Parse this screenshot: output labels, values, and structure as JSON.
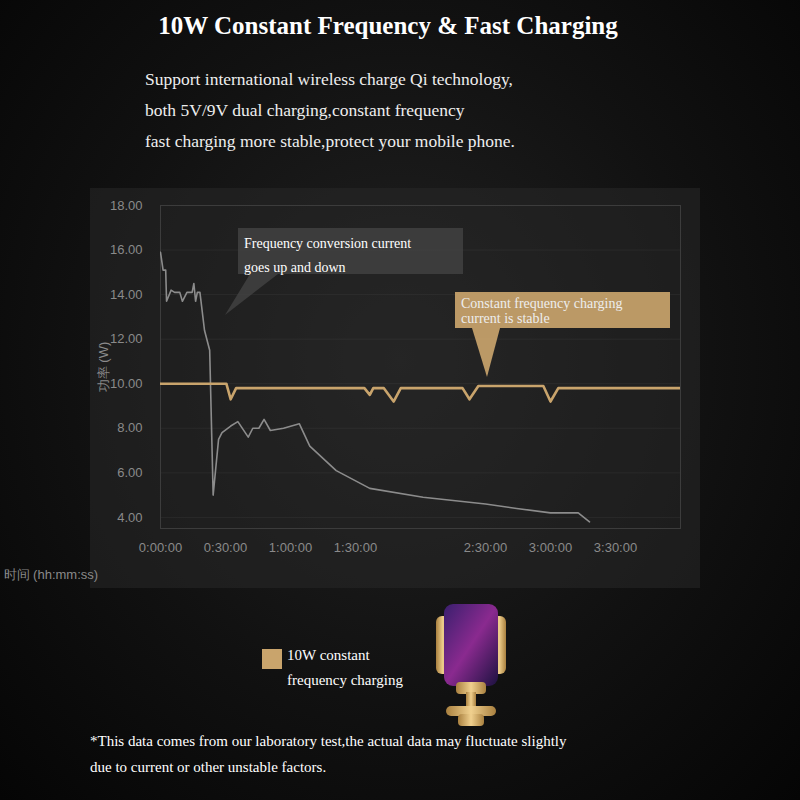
{
  "chart_data": {
    "type": "line",
    "title": "10W Constant Frequency & Fast Charging",
    "subtitle": "Support international wireless charge Qi technology,\nboth 5V/9V dual charging,constant frequency\nfast charging more stable,protect your mobile phone.",
    "x_label": "时间 (hh:mm:ss)",
    "y_label": "功率 (W)",
    "annotations": [
      "Frequency conversion current\ngoes up and down",
      "Constant frequency charging\ncurrent is stable"
    ],
    "caption": "*This data comes from our laboratory test,the actual data may fluctuate slightly\ndue to current or other unstable factors.",
    "series": [
      {
        "color": "#8c8c8c",
        "x": [
          0,
          1.2,
          2.4,
          2.8,
          4.9,
          6.5,
          8.9,
          10.1,
          12.2,
          14.6,
          15.4,
          16.2,
          17.0,
          18.2,
          20.3,
          22.7,
          24.3,
          26.8,
          28.4,
          32.4,
          35.7,
          40.5,
          42.6,
          45.4,
          47.8,
          50.7,
          56.8,
          64.1,
          68.9,
          81.1,
          96.6,
          121.2,
          150,
          164.4,
          180,
          192.8,
          198
        ],
        "values": [
          15.9,
          15.1,
          15.1,
          13.7,
          14.2,
          14.1,
          14.1,
          13.7,
          14.1,
          14.1,
          14.5,
          13.7,
          14.1,
          14.1,
          12.4,
          11.5,
          5.0,
          7.5,
          7.8,
          8.1,
          8.3,
          7.6,
          8.0,
          8.0,
          8.4,
          7.9,
          8.0,
          8.2,
          7.2,
          6.1,
          5.3,
          4.9,
          4.6,
          4.4,
          4.2,
          4.2,
          3.8
        ]
      },
      {
        "name": "10W constant frequency charging",
        "color": "#c9a46c",
        "x": [
          0,
          30.4,
          32.4,
          34.9,
          94.1,
          96.6,
          98.2,
          103.1,
          107.6,
          110.9,
          139.4,
          142.6,
          146.7,
          176.7,
          180,
          183.6,
          240
        ],
        "values": [
          10.0,
          10.0,
          9.3,
          9.8,
          9.8,
          9.5,
          9.8,
          9.8,
          9.2,
          9.8,
          9.8,
          9.3,
          9.9,
          9.9,
          9.2,
          9.8,
          9.8
        ]
      }
    ],
    "xlim": [
      0,
      240
    ],
    "xticks": [
      {
        "value": 0,
        "label": "0:00:00"
      },
      {
        "value": 30,
        "label": "0:30:00"
      },
      {
        "value": 60,
        "label": "1:00:00"
      },
      {
        "value": 90,
        "label": "1:30:00"
      },
      {
        "value": 150,
        "label": "2:30:00"
      },
      {
        "value": 180,
        "label": "3:00:00"
      },
      {
        "value": 210,
        "label": "3:30:00"
      }
    ],
    "ylim": [
      3.5,
      18
    ],
    "yticks": [
      {
        "value": 4,
        "label": "4.00"
      },
      {
        "value": 6,
        "label": "6.00"
      },
      {
        "value": 8,
        "label": "8.00"
      },
      {
        "value": 10,
        "label": "10.00"
      },
      {
        "value": 12,
        "label": "12.00"
      },
      {
        "value": 14,
        "label": "14.00"
      },
      {
        "value": 16,
        "label": "16.00"
      },
      {
        "value": 18,
        "label": "18.00"
      }
    ],
    "grid": true,
    "legend": "bottom"
  }
}
